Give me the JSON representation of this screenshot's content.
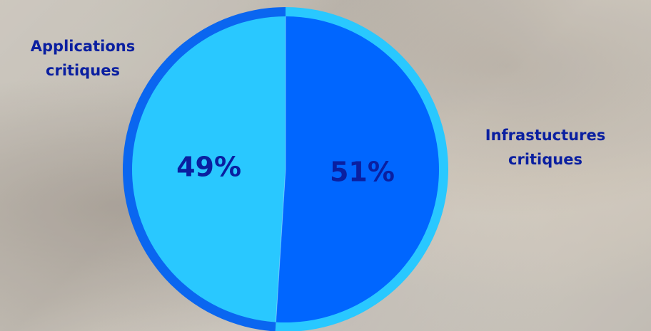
{
  "chart_data": {
    "type": "pie",
    "slices": [
      {
        "name_lines": [
          "Infrastuctures",
          "critiques"
        ],
        "value": 51,
        "label": "51%",
        "color": "#0066ff",
        "rim_color": "#29c8ff"
      },
      {
        "name_lines": [
          "Applications",
          "critiques"
        ],
        "value": 49,
        "label": "49%",
        "color": "#29c8ff",
        "rim_color": "#0a66f0"
      }
    ],
    "text_color": "#0a1fa0",
    "title": "",
    "legend": "none"
  }
}
